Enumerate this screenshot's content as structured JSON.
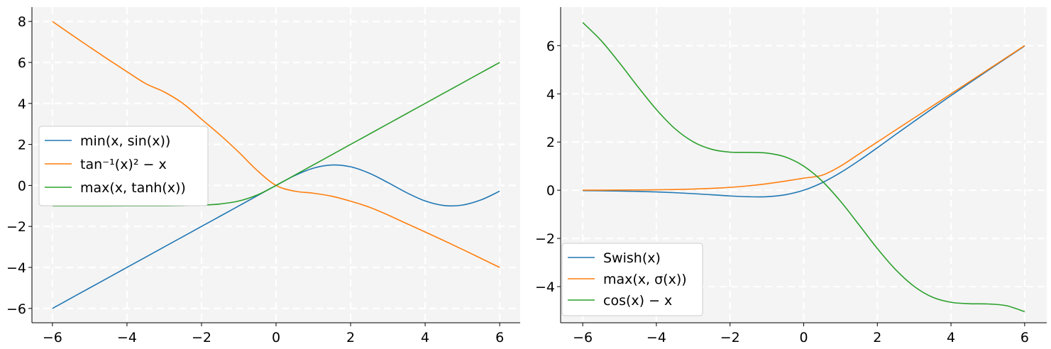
{
  "chart_data": [
    {
      "type": "line",
      "title": "",
      "xlabel": "",
      "ylabel": "",
      "xlim": [
        -6.55,
        6.55
      ],
      "ylim": [
        -6.7,
        8.7
      ],
      "xticks": [
        -6,
        -4,
        -2,
        0,
        2,
        4,
        6
      ],
      "yticks": [
        -6,
        -4,
        -2,
        0,
        2,
        4,
        6,
        8
      ],
      "xtick_labels": [
        "−6",
        "−4",
        "−2",
        "0",
        "2",
        "4",
        "6"
      ],
      "ytick_labels": [
        "−6",
        "−4",
        "−2",
        "0",
        "2",
        "4",
        "6",
        "8"
      ],
      "grid": true,
      "legend_position": "center-left",
      "x": [
        -6,
        -5.5,
        -5,
        -4.5,
        -4,
        -3.5,
        -3,
        -2.5,
        -2,
        -1.5,
        -1,
        -0.5,
        0,
        0.5,
        1,
        1.5,
        2,
        2.5,
        3,
        3.5,
        4,
        4.5,
        5,
        5.5,
        6
      ],
      "series": [
        {
          "name": "min(x, sin(x))",
          "color": "#1f77b4",
          "values": [
            -6,
            -5.5,
            -5,
            -4.5,
            -4,
            -3.5,
            -3,
            -2.5,
            -2,
            -1.5,
            -1,
            -0.5,
            0,
            0.479,
            0.841,
            0.997,
            0.909,
            0.598,
            0.141,
            -0.351,
            -0.757,
            -0.978,
            -0.959,
            -0.706,
            -0.279
          ]
        },
        {
          "name": "tan⁻¹(x)² − x",
          "color": "#ff7f0e",
          "values": [
            8.0,
            7.37,
            6.75,
            6.14,
            5.55,
            4.97,
            4.56,
            4.0,
            3.23,
            2.46,
            1.62,
            0.72,
            0.0,
            -0.28,
            -0.38,
            -0.53,
            -0.77,
            -1.06,
            -1.44,
            -1.86,
            -2.27,
            -2.69,
            -3.12,
            -3.56,
            -4.0
          ]
        },
        {
          "name": "max(x, tanh(x))",
          "color": "#2ca02c",
          "values": [
            -1.0,
            -1.0,
            -1.0,
            -1.0,
            -0.999,
            -0.998,
            -0.995,
            -0.987,
            -0.964,
            -0.905,
            -0.762,
            -0.462,
            0,
            0.5,
            1,
            1.5,
            2,
            2.5,
            3,
            3.5,
            4,
            4.5,
            5,
            5.5,
            6
          ]
        }
      ]
    },
    {
      "type": "line",
      "title": "",
      "xlabel": "",
      "ylabel": "",
      "xlim": [
        -6.6,
        6.6
      ],
      "ylim": [
        -5.5,
        7.6
      ],
      "xticks": [
        -6,
        -4,
        -2,
        0,
        2,
        4,
        6
      ],
      "yticks": [
        -4,
        -2,
        0,
        2,
        4,
        6
      ],
      "xtick_labels": [
        "−6",
        "−4",
        "−2",
        "0",
        "2",
        "4",
        "6"
      ],
      "ytick_labels": [
        "−4",
        "−2",
        "0",
        "2",
        "4",
        "6"
      ],
      "grid": true,
      "legend_position": "lower-left",
      "x": [
        -6,
        -5.5,
        -5,
        -4.5,
        -4,
        -3.5,
        -3,
        -2.5,
        -2,
        -1.5,
        -1,
        -0.5,
        0,
        0.5,
        1,
        1.5,
        2,
        2.5,
        3,
        3.5,
        4,
        4.5,
        5,
        5.5,
        6
      ],
      "series": [
        {
          "name": "Swish(x)",
          "color": "#1f77b4",
          "values": [
            -0.015,
            -0.022,
            -0.033,
            -0.049,
            -0.072,
            -0.102,
            -0.142,
            -0.189,
            -0.238,
            -0.27,
            -0.269,
            -0.189,
            0,
            0.311,
            0.731,
            1.227,
            1.762,
            2.316,
            2.858,
            3.395,
            3.928,
            4.45,
            4.967,
            5.478,
            5.985
          ]
        },
        {
          "name": "max(x, σ(x))",
          "color": "#ff7f0e",
          "values": [
            0.002,
            0.004,
            0.007,
            0.011,
            0.018,
            0.029,
            0.047,
            0.076,
            0.119,
            0.182,
            0.269,
            0.378,
            0.5,
            0.622,
            1.0,
            1.5,
            2.0,
            2.5,
            3.0,
            3.5,
            4.0,
            4.5,
            5.0,
            5.5,
            6.0
          ]
        },
        {
          "name": "cos(x) − x",
          "color": "#2ca02c",
          "values": [
            6.96,
            6.21,
            5.28,
            4.29,
            3.35,
            2.56,
            2.01,
            1.7,
            1.58,
            1.57,
            1.54,
            1.38,
            1.0,
            0.38,
            -0.46,
            -1.43,
            -2.42,
            -3.3,
            -3.99,
            -4.44,
            -4.65,
            -4.71,
            -4.72,
            -4.79,
            -5.04
          ]
        }
      ]
    }
  ]
}
